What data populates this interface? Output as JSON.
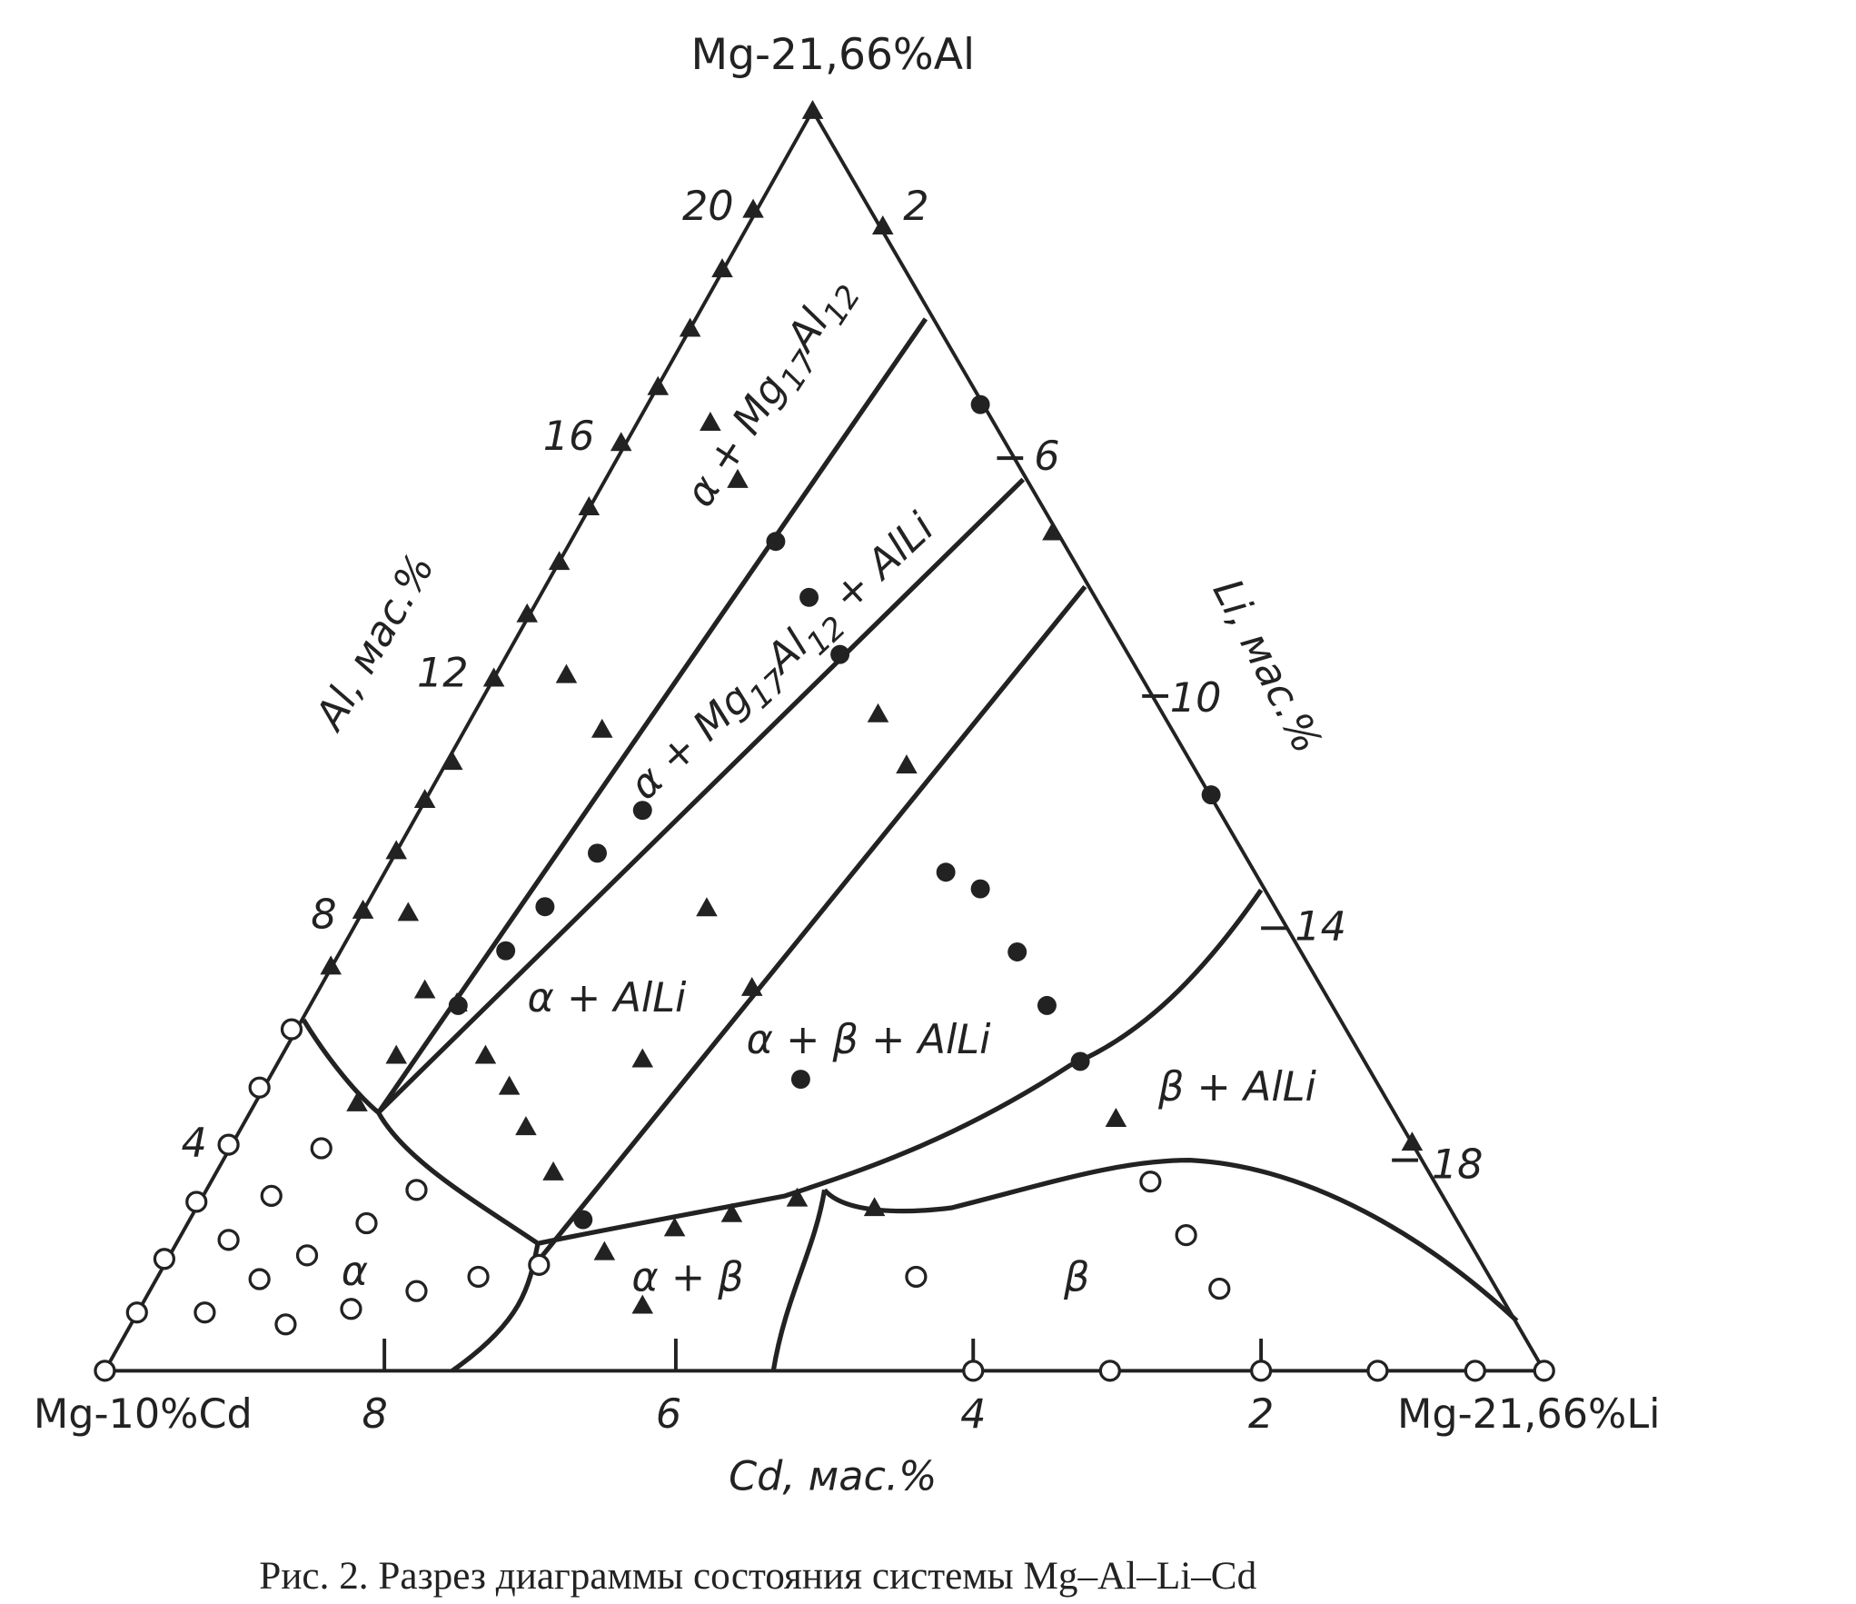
{
  "diagram": {
    "vertices": {
      "top": "Mg-21,66%Al",
      "left": "Mg-10%Cd",
      "right": "Mg-21,66%Li"
    },
    "axes": {
      "left": {
        "label": "Al, мас.%",
        "ticks": [
          20,
          16,
          12,
          8,
          4
        ]
      },
      "right": {
        "label": "Li, мас.%",
        "ticks": [
          2,
          6,
          10,
          14,
          18
        ]
      },
      "bottom": {
        "label": "Cd, мас.%",
        "ticks": [
          8,
          6,
          4,
          2
        ]
      }
    },
    "regions": [
      [
        "α + Mg",
        "17",
        "Al",
        "12"
      ],
      [
        "α + Mg",
        "17",
        "Al",
        "12",
        " + AlLi"
      ],
      [
        "α + AlLi"
      ],
      [
        "α + β + AlLi"
      ],
      [
        "β + AlLi"
      ],
      [
        "α + β"
      ],
      [
        "β"
      ],
      [
        "α"
      ]
    ],
    "caption": "Рис. 2. Разрез диаграммы состояния системы Mg–Al–Li–Cd"
  }
}
